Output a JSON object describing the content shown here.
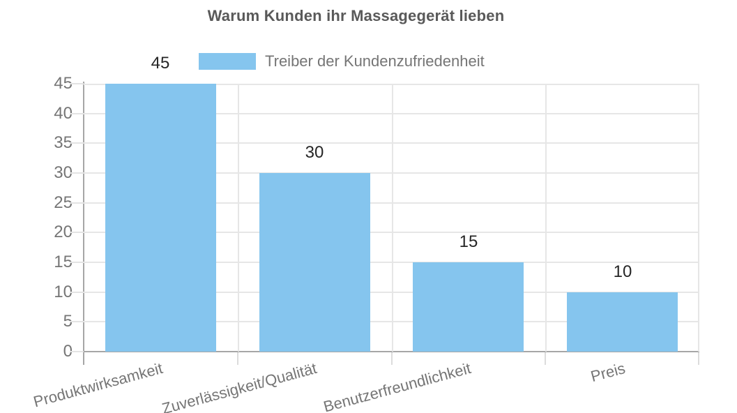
{
  "chart": {
    "title": "Warum Kunden ihr Massagegerät lieben",
    "legend_label": "Treiber der Kundenzufriedenheit",
    "colors": {
      "bar": "#85C5EE",
      "grid": "#E6E6E6",
      "axis": "#A6A6A6",
      "tick": "#DCDCDC",
      "title_text": "#595959",
      "axis_text": "#757575",
      "value_text": "#262626",
      "background": "#FFFFFF"
    }
  },
  "chart_data": {
    "type": "bar",
    "title": "Warum Kunden ihr Massagegerät lieben",
    "categories": [
      "Produktwirksamkeit",
      "Zuverlässigkeit/Qualität",
      "Benutzerfreundlichkeit",
      "Preis"
    ],
    "values": [
      45,
      30,
      15,
      10
    ],
    "value_labels": [
      "45",
      "30",
      "15",
      "10"
    ],
    "series_name": "Treiber der Kundenzufriedenheit",
    "legend_entries": [
      "Treiber der Kundenzufriedenheit"
    ],
    "legend_position": "top",
    "xlabel": "",
    "ylabel": "",
    "ylim": [
      0,
      45
    ],
    "yticks": [
      0,
      5,
      10,
      15,
      20,
      25,
      30,
      35,
      40,
      45
    ],
    "grid": true,
    "x_label_rotation_deg": -15
  }
}
